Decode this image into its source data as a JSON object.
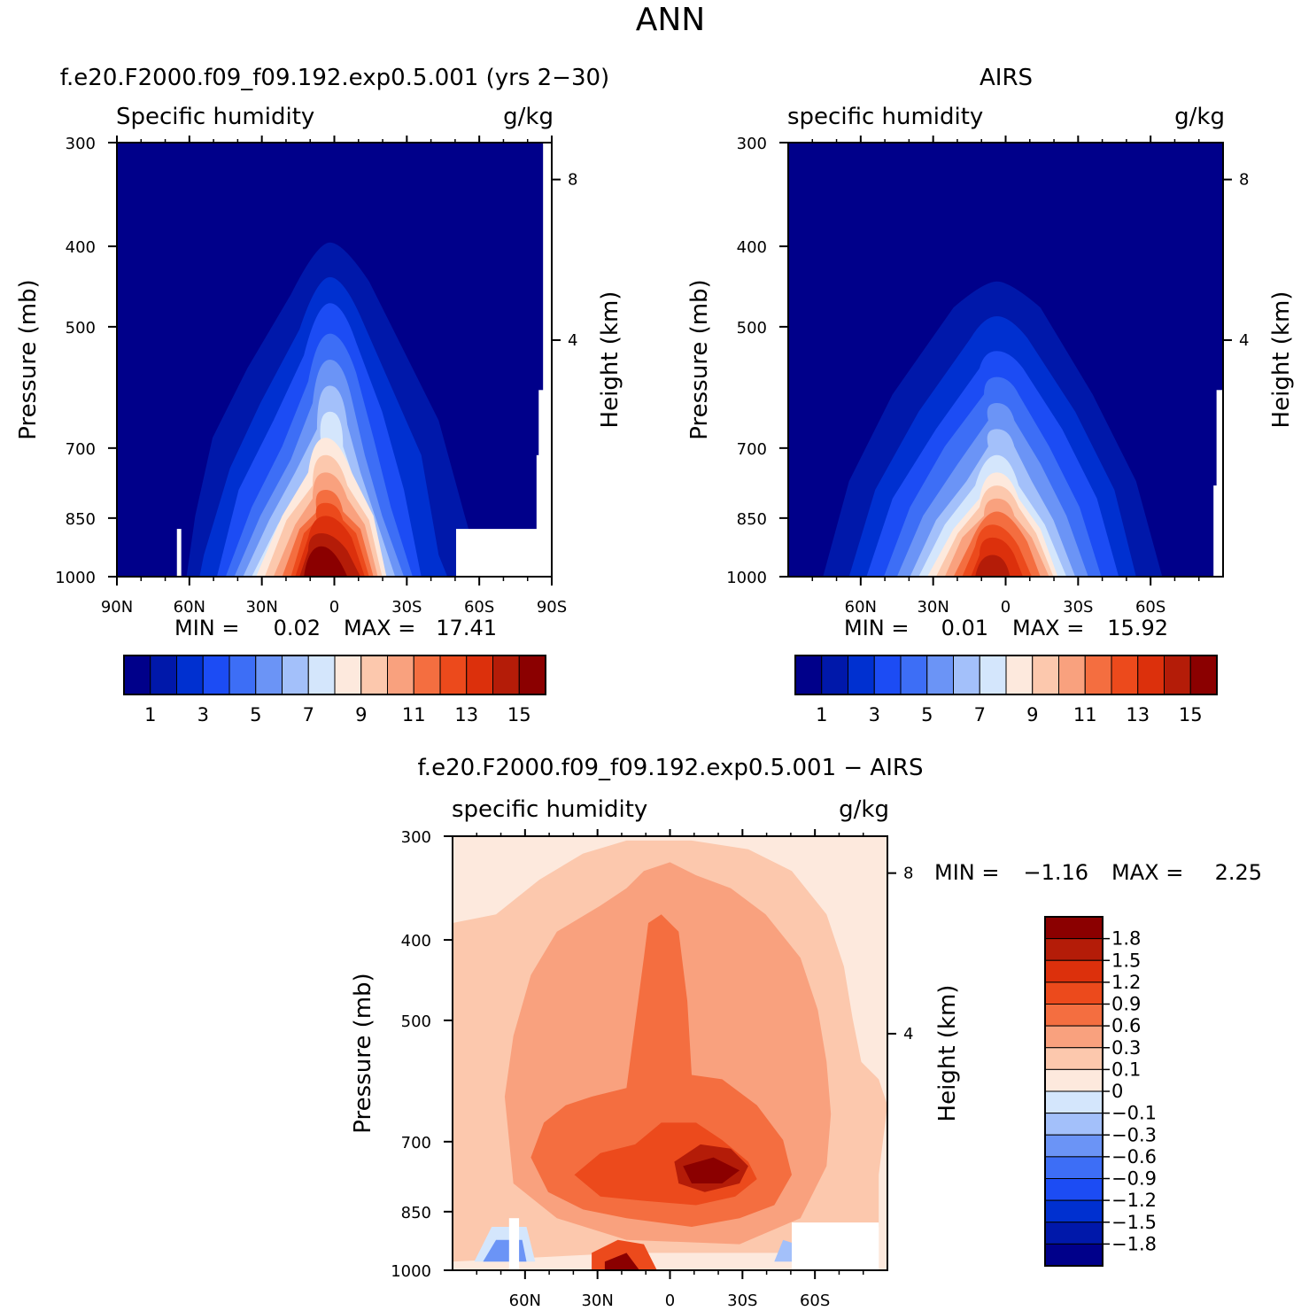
{
  "figure": {
    "title": "ANN"
  },
  "chart_data": [
    {
      "type": "contour",
      "title": "f.e20.F2000.f09_f09.192.exp0.5.001 (yrs 2−30)",
      "subtitle_left": "Specific humidity",
      "subtitle_right": "g/kg",
      "ylabel": "Pressure (mb)",
      "y2label": "Height (km)",
      "xticks": [
        "90N",
        "60N",
        "30N",
        "0",
        "30S",
        "60S",
        "90S"
      ],
      "xtick_values": [
        -90,
        -60,
        -30,
        0,
        30,
        60,
        90
      ],
      "xlim": [
        -90,
        90
      ],
      "yticks": [
        "300",
        "400",
        "500",
        "700",
        "850",
        "1000"
      ],
      "ytick_values": [
        300,
        400,
        500,
        700,
        850,
        1000
      ],
      "ylim": [
        300,
        1000
      ],
      "y2ticks": [
        "8",
        "4"
      ],
      "min_label": "MIN =",
      "min_value": "0.02",
      "max_label": "MAX =",
      "max_value": "17.41",
      "levels": [
        1,
        2,
        3,
        4,
        5,
        6,
        7,
        8,
        9,
        10,
        11,
        12,
        13,
        14,
        15
      ],
      "colorbar_labels": [
        "1",
        "3",
        "5",
        "7",
        "9",
        "11",
        "13",
        "15"
      ],
      "colors": [
        "#00008a",
        "#0018aa",
        "#0030d0",
        "#1c4cf4",
        "#3d6ef6",
        "#6b94f6",
        "#a3c0fa",
        "#d4e6fc",
        "#fde9dd",
        "#fcc8ad",
        "#f9a17e",
        "#f46e40",
        "#ec4a1c",
        "#dc300c",
        "#b41c08",
        "#8b0000"
      ],
      "peak_lat": -1,
      "peak_value": 17.41
    },
    {
      "type": "contour",
      "title": "AIRS",
      "subtitle_left": "specific humidity",
      "subtitle_right": "g/kg",
      "ylabel": "Pressure (mb)",
      "y2label": "Height (km)",
      "xticks": [
        "60N",
        "30N",
        "0",
        "30S",
        "60S"
      ],
      "xtick_values": [
        -60,
        -30,
        0,
        30,
        60
      ],
      "xlim": [
        -90,
        90
      ],
      "yticks": [
        "300",
        "400",
        "500",
        "700",
        "850",
        "1000"
      ],
      "ytick_values": [
        300,
        400,
        500,
        700,
        850,
        1000
      ],
      "ylim": [
        300,
        1000
      ],
      "y2ticks": [
        "8",
        "4"
      ],
      "min_label": "MIN =",
      "min_value": "0.01",
      "max_label": "MAX =",
      "max_value": "15.92",
      "levels": [
        1,
        2,
        3,
        4,
        5,
        6,
        7,
        8,
        9,
        10,
        11,
        12,
        13,
        14,
        15
      ],
      "colorbar_labels": [
        "1",
        "3",
        "5",
        "7",
        "9",
        "11",
        "13",
        "15"
      ],
      "colors": [
        "#00008a",
        "#0018aa",
        "#0030d0",
        "#1c4cf4",
        "#3d6ef6",
        "#6b94f6",
        "#a3c0fa",
        "#d4e6fc",
        "#fde9dd",
        "#fcc8ad",
        "#f9a17e",
        "#f46e40",
        "#ec4a1c",
        "#dc300c",
        "#b41c08",
        "#8b0000"
      ],
      "peak_lat": -3,
      "peak_value": 15.92
    },
    {
      "type": "contour",
      "title": "f.e20.F2000.f09_f09.192.exp0.5.001 − AIRS",
      "subtitle_left": "specific humidity",
      "subtitle_right": "g/kg",
      "ylabel": "Pressure (mb)",
      "y2label": "Height (km)",
      "xticks": [
        "60N",
        "30N",
        "0",
        "30S",
        "60S"
      ],
      "xtick_values": [
        -60,
        -30,
        0,
        30,
        60
      ],
      "xlim": [
        -90,
        90
      ],
      "yticks": [
        "300",
        "400",
        "500",
        "700",
        "850",
        "1000"
      ],
      "ytick_values": [
        300,
        400,
        500,
        700,
        850,
        1000
      ],
      "ylim": [
        300,
        1000
      ],
      "y2ticks": [
        "8",
        "4"
      ],
      "min_label": "MIN =",
      "min_value": "−1.16",
      "max_label": "MAX =",
      "max_value": "2.25",
      "levels": [
        -1.8,
        -1.5,
        -1.2,
        -0.9,
        -0.6,
        -0.3,
        -0.1,
        0,
        0.1,
        0.3,
        0.6,
        0.9,
        1.2,
        1.5,
        1.8
      ],
      "colorbar_labels": [
        "1.8",
        "1.5",
        "1.2",
        "0.9",
        "0.6",
        "0.3",
        "0.1",
        "0",
        "−0.1",
        "−0.3",
        "−0.6",
        "−0.9",
        "−1.2",
        "−1.5",
        "−1.8"
      ],
      "colors": [
        "#00008a",
        "#0018aa",
        "#0030d0",
        "#1c4cf4",
        "#3d6ef6",
        "#6b94f6",
        "#a3c0fa",
        "#d4e6fc",
        "#fde9dd",
        "#fcc8ad",
        "#f9a17e",
        "#f46e40",
        "#ec4a1c",
        "#dc300c",
        "#b41c08",
        "#8b0000"
      ]
    }
  ]
}
